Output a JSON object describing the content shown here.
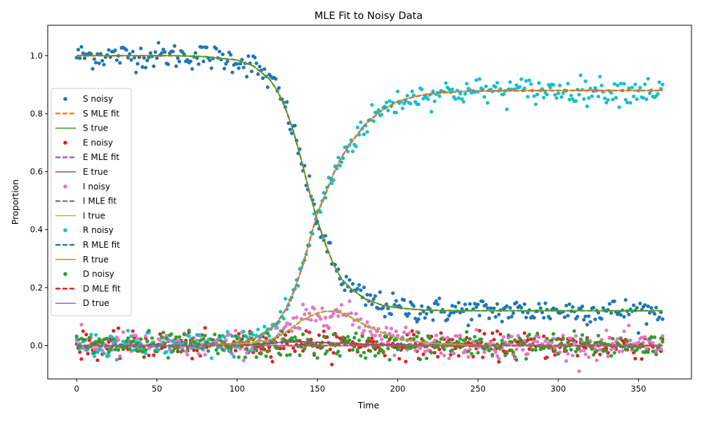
{
  "chart_data": {
    "type": "line",
    "title": "MLE Fit to Noisy Data",
    "xlabel": "Time",
    "ylabel": "Proportion",
    "xlim": [
      -18,
      383
    ],
    "ylim": [
      -0.115,
      1.105
    ],
    "xticks": [
      0,
      50,
      100,
      150,
      200,
      250,
      300,
      350
    ],
    "yticks": [
      0.0,
      0.2,
      0.4,
      0.6,
      0.8,
      1.0
    ],
    "xtick_labels": [
      "0",
      "50",
      "100",
      "150",
      "200",
      "250",
      "300",
      "350"
    ],
    "ytick_labels": [
      "0.0",
      "0.2",
      "0.4",
      "0.6",
      "0.8",
      "1.0"
    ],
    "grid": false,
    "legend_position": "center-left",
    "legend": [
      {
        "label": "S noisy",
        "kind": "scatter",
        "color": "#1f77b4"
      },
      {
        "label": "S MLE fit",
        "kind": "dashed",
        "color": "#ff7f0e"
      },
      {
        "label": "S true",
        "kind": "line",
        "color": "#2ca02c"
      },
      {
        "label": "E noisy",
        "kind": "scatter",
        "color": "#d62728"
      },
      {
        "label": "E MLE fit",
        "kind": "dashed",
        "color": "#9467bd"
      },
      {
        "label": "E true",
        "kind": "line",
        "color": "#8c564b"
      },
      {
        "label": "I noisy",
        "kind": "scatter",
        "color": "#e377c2"
      },
      {
        "label": "I MLE fit",
        "kind": "dashed",
        "color": "#7f7f7f"
      },
      {
        "label": "I true",
        "kind": "line",
        "color": "#bcbd22"
      },
      {
        "label": "R noisy",
        "kind": "scatter",
        "color": "#17becf"
      },
      {
        "label": "R MLE fit",
        "kind": "dashed",
        "color": "#1f77b4"
      },
      {
        "label": "R true",
        "kind": "line",
        "color": "#ff7f0e"
      },
      {
        "label": "D noisy",
        "kind": "scatter",
        "color": "#2ca02c"
      },
      {
        "label": "D MLE fit",
        "kind": "dashed",
        "color": "#d62728"
      },
      {
        "label": "D true",
        "kind": "line",
        "color": "#9467bd"
      }
    ],
    "x": [
      0,
      20,
      40,
      60,
      80,
      100,
      110,
      120,
      125,
      130,
      135,
      140,
      145,
      150,
      155,
      160,
      165,
      170,
      175,
      180,
      190,
      200,
      210,
      220,
      240,
      260,
      300,
      365
    ],
    "series": [
      {
        "name": "S true",
        "values": [
          1.0,
          1.0,
          1.0,
          1.0,
          0.997,
          0.985,
          0.965,
          0.92,
          0.88,
          0.82,
          0.74,
          0.64,
          0.53,
          0.43,
          0.35,
          0.28,
          0.23,
          0.2,
          0.18,
          0.16,
          0.14,
          0.13,
          0.125,
          0.122,
          0.12,
          0.12,
          0.12,
          0.12
        ]
      },
      {
        "name": "E true",
        "values": [
          0.0,
          0.0,
          0.0,
          0.0,
          0.0,
          0.002,
          0.004,
          0.007,
          0.01,
          0.012,
          0.013,
          0.013,
          0.012,
          0.011,
          0.01,
          0.009,
          0.008,
          0.007,
          0.006,
          0.005,
          0.004,
          0.003,
          0.002,
          0.001,
          0.0,
          0.0,
          0.0,
          0.0
        ]
      },
      {
        "name": "I true",
        "values": [
          0.0,
          0.0,
          0.0,
          0.0,
          0.002,
          0.005,
          0.01,
          0.02,
          0.03,
          0.045,
          0.065,
          0.085,
          0.1,
          0.112,
          0.118,
          0.118,
          0.112,
          0.1,
          0.085,
          0.07,
          0.045,
          0.025,
          0.015,
          0.008,
          0.003,
          0.001,
          0.0,
          0.0
        ]
      },
      {
        "name": "R true",
        "values": [
          0.0,
          0.0,
          0.0,
          0.0,
          0.001,
          0.008,
          0.021,
          0.053,
          0.08,
          0.123,
          0.182,
          0.262,
          0.358,
          0.457,
          0.522,
          0.593,
          0.65,
          0.693,
          0.729,
          0.765,
          0.811,
          0.842,
          0.858,
          0.869,
          0.877,
          0.879,
          0.88,
          0.88
        ]
      },
      {
        "name": "D true",
        "values": [
          0.0,
          0.0,
          0.0,
          0.0,
          0.0,
          0.0,
          0.0,
          0.0,
          0.0,
          0.0,
          0.0,
          0.0,
          0.0,
          0.0,
          0.0,
          0.0,
          0.0,
          0.0,
          0.0,
          0.0,
          0.0,
          0.0,
          0.0,
          0.0,
          0.0,
          0.0,
          0.0,
          0.0
        ]
      }
    ]
  }
}
